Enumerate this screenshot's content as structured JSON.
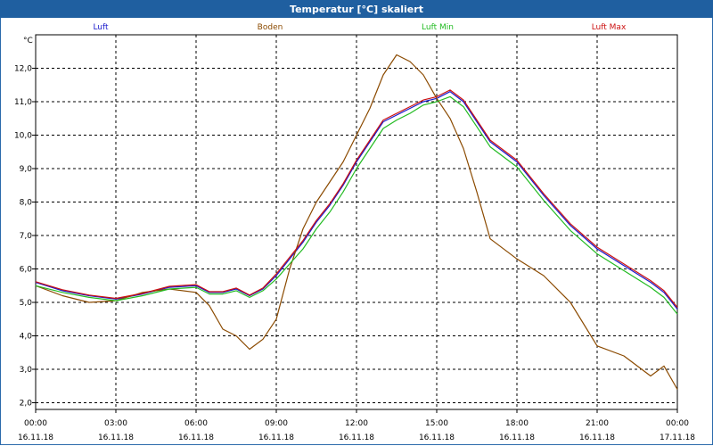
{
  "window": {
    "title": "Temperatur [°C] skaliert"
  },
  "chart_data": {
    "type": "line",
    "title": "Temperatur [°C] skaliert",
    "ylabel": "°C",
    "xlabel": "",
    "ylim": [
      1.8,
      13.0
    ],
    "xlim": [
      0,
      24
    ],
    "grid": true,
    "yticks": [
      2.0,
      3.0,
      4.0,
      5.0,
      6.0,
      7.0,
      8.0,
      9.0,
      10.0,
      11.0,
      12.0
    ],
    "ytick_labels": [
      "2,0",
      "3,0",
      "4,0",
      "5,0",
      "6,0",
      "7,0",
      "8,0",
      "9,0",
      "10,0",
      "11,0",
      "12,0"
    ],
    "xticks": [
      0,
      3,
      6,
      9,
      12,
      15,
      18,
      21,
      24
    ],
    "xtick_time_labels": [
      "00:00",
      "03:00",
      "06:00",
      "09:00",
      "12:00",
      "15:00",
      "18:00",
      "21:00",
      "00:00"
    ],
    "xtick_date_labels": [
      "16.11.18",
      "16.11.18",
      "16.11.18",
      "16.11.18",
      "16.11.18",
      "16.11.18",
      "16.11.18",
      "16.11.18",
      "17.11.18"
    ],
    "x": [
      0,
      1,
      2,
      3,
      4,
      5,
      6,
      6.5,
      7,
      7.5,
      8,
      8.5,
      9,
      9.5,
      10,
      10.5,
      11,
      11.5,
      12,
      12.5,
      13,
      13.5,
      14,
      14.5,
      15,
      15.5,
      16,
      16.5,
      17,
      18,
      19,
      20,
      21,
      22,
      23,
      23.5,
      24
    ],
    "series": [
      {
        "name": "Luft",
        "color": "#1a1acc",
        "values": [
          5.6,
          5.35,
          5.2,
          5.1,
          5.25,
          5.45,
          5.5,
          5.3,
          5.3,
          5.4,
          5.2,
          5.4,
          5.8,
          6.3,
          6.8,
          7.4,
          7.9,
          8.5,
          9.2,
          9.8,
          10.4,
          10.6,
          10.8,
          11.0,
          11.1,
          11.3,
          11.0,
          10.4,
          9.8,
          9.2,
          8.2,
          7.3,
          6.6,
          6.1,
          5.6,
          5.3,
          4.8
        ]
      },
      {
        "name": "Boden",
        "color": "#8b4a00",
        "values": [
          5.5,
          5.2,
          5.0,
          5.05,
          5.3,
          5.4,
          5.3,
          4.9,
          4.2,
          4.0,
          3.6,
          3.9,
          4.5,
          6.0,
          7.2,
          8.0,
          8.6,
          9.2,
          10.0,
          10.8,
          11.8,
          12.4,
          12.2,
          11.8,
          11.1,
          10.5,
          9.6,
          8.3,
          6.9,
          6.3,
          5.8,
          5.0,
          3.7,
          3.4,
          2.8,
          3.1,
          2.4
        ]
      },
      {
        "name": "Luft Min",
        "color": "#22bb22",
        "values": [
          5.5,
          5.3,
          5.15,
          5.05,
          5.2,
          5.4,
          5.45,
          5.25,
          5.25,
          5.35,
          5.15,
          5.35,
          5.7,
          6.15,
          6.6,
          7.2,
          7.7,
          8.3,
          9.0,
          9.6,
          10.2,
          10.45,
          10.65,
          10.9,
          11.0,
          11.15,
          10.85,
          10.25,
          9.65,
          9.05,
          8.05,
          7.15,
          6.45,
          5.95,
          5.45,
          5.15,
          4.65
        ]
      },
      {
        "name": "Luft Max",
        "color": "#cc1111",
        "values": [
          5.62,
          5.38,
          5.22,
          5.12,
          5.27,
          5.48,
          5.53,
          5.32,
          5.32,
          5.43,
          5.22,
          5.43,
          5.85,
          6.35,
          6.85,
          7.45,
          7.95,
          8.55,
          9.25,
          9.85,
          10.45,
          10.65,
          10.85,
          11.05,
          11.15,
          11.35,
          11.05,
          10.45,
          9.85,
          9.25,
          8.25,
          7.35,
          6.65,
          6.15,
          5.65,
          5.35,
          4.85
        ]
      }
    ]
  }
}
